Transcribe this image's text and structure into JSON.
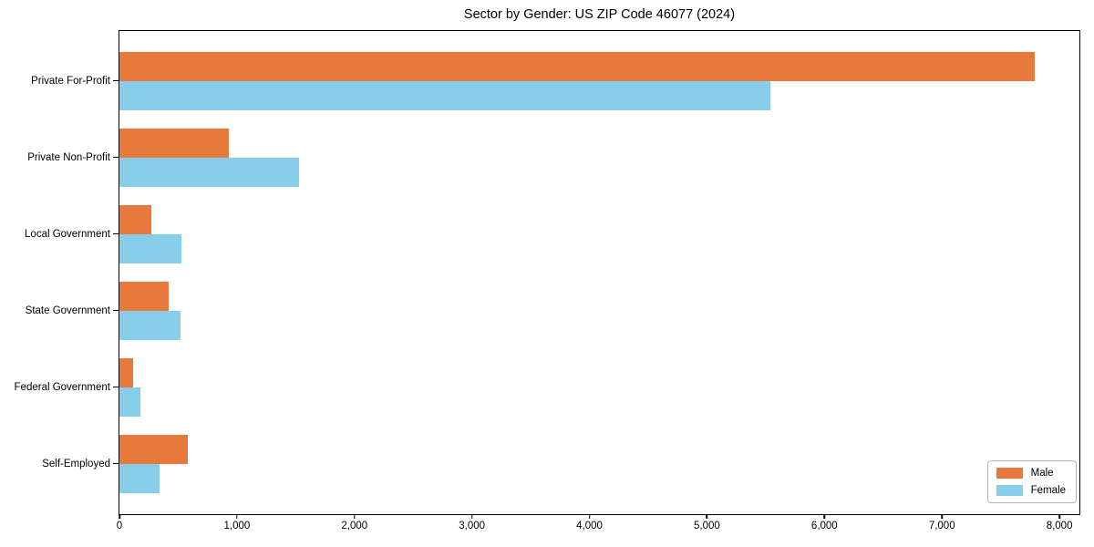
{
  "chart_data": {
    "type": "bar",
    "orientation": "horizontal",
    "title": "Sector by Gender: US ZIP Code 46077 (2024)",
    "categories": [
      "Private For-Profit",
      "Private Non-Profit",
      "Local Government",
      "State Government",
      "Federal Government",
      "Self-Employed"
    ],
    "series": [
      {
        "name": "Male",
        "color": "#e8793c",
        "values": [
          7790,
          930,
          270,
          420,
          120,
          580
        ]
      },
      {
        "name": "Female",
        "color": "#87ceeb",
        "values": [
          5540,
          1530,
          530,
          520,
          180,
          340
        ]
      }
    ],
    "xlabel": "",
    "ylabel": "",
    "xlim": [
      0,
      8170
    ],
    "xticks": [
      0,
      1000,
      2000,
      3000,
      4000,
      5000,
      6000,
      7000,
      8000
    ],
    "xtick_labels": [
      "0",
      "1,000",
      "2,000",
      "3,000",
      "4,000",
      "5,000",
      "6,000",
      "7,000",
      "8,000"
    ],
    "grid": false,
    "legend_position": "lower right",
    "axis_color": "#000000",
    "background_color": "#ffffff"
  }
}
